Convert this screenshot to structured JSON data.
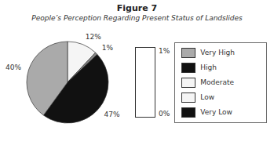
{
  "chart_data": {
    "type": "pie",
    "title": "Figure 7",
    "subtitle": "People’s Perception Regarding Present Status of Landslides",
    "values": [
      12,
      1,
      47,
      40
    ],
    "value_labels": [
      "12%",
      "1%",
      "47%",
      "40%"
    ],
    "colors": [
      "#f5f5f5",
      "#888888",
      "#111111",
      "#aaaaaa"
    ],
    "data_labels": true,
    "legend": "right",
    "legend_entries": [
      {
        "name": "Very High",
        "color": "#aaaaaa"
      },
      {
        "name": "High",
        "color": "#111111"
      },
      {
        "name": "Moderate",
        "color": "#f5f5f5"
      },
      {
        "name": "Low",
        "color": "#f5f5f5"
      },
      {
        "name": "Very Low",
        "color": "#111111"
      }
    ],
    "annotations": [
      "1%",
      "0%"
    ]
  }
}
